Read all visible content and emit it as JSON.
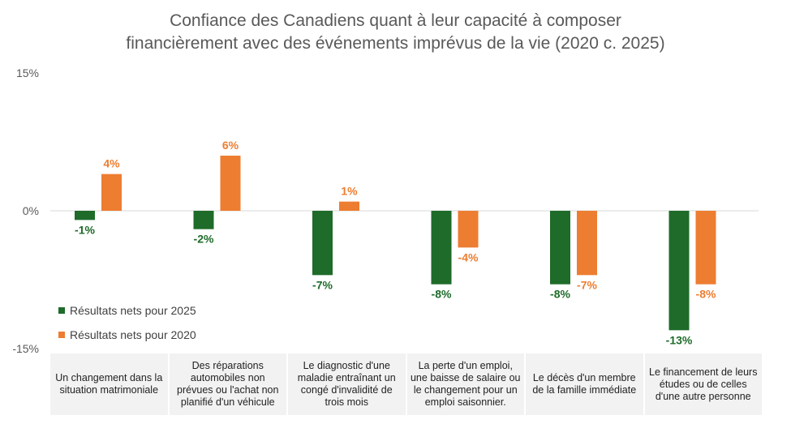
{
  "chart_data": {
    "type": "bar",
    "title": [
      "Confiance des Canadiens quant à leur capacité à composer",
      "financièrement avec des événements imprévus de la vie (2020 c. 2025)"
    ],
    "categories": [
      "Un changement dans la situation matrimoniale",
      "Des réparations automobiles non prévues ou l'achat non planifié d'un véhicule",
      "Le diagnostic d'une maladie entraînant un congé d'invalidité de trois mois",
      "La perte d'un emploi, une baisse de salaire ou le changement pour un emploi saisonnier.",
      "Le décès d'un membre de la famille immédiate",
      "Le financement de leurs études ou de celles d'une autre personne"
    ],
    "series": [
      {
        "name": "Résultats nets pour 2025",
        "color": "#1e6b2a",
        "values": [
          -1,
          -2,
          -7,
          -8,
          -8,
          -13
        ]
      },
      {
        "name": "Résultats nets pour 2020",
        "color": "#ed7d31",
        "values": [
          4,
          6,
          1,
          -4,
          -7,
          -8
        ]
      }
    ],
    "yticks": [
      "15%",
      "0%",
      "-15%"
    ],
    "ylim": [
      -15,
      15
    ],
    "unit": "%",
    "legend": "left-inside",
    "grid": false
  }
}
